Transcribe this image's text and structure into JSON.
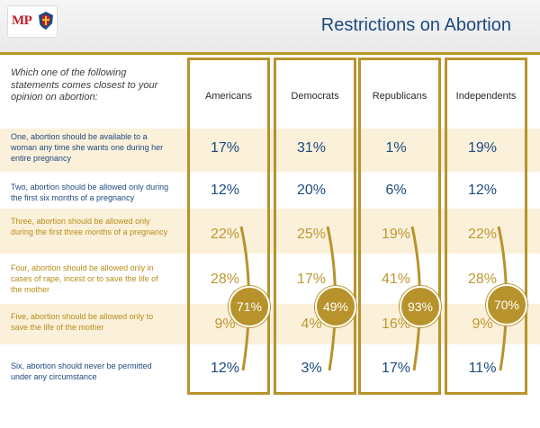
{
  "header": {
    "logo_text": "MP",
    "title": "Restrictions on Abortion"
  },
  "question": "Which one of the following statements comes closest to your opinion on abortion:",
  "colors": {
    "navy": "#1c4a80",
    "gold": "#b8932c",
    "band": "#fbf0da"
  },
  "chart_data": {
    "type": "table",
    "columns": [
      "Americans",
      "Democrats",
      "Republicans",
      "Independents"
    ],
    "rows": [
      {
        "label": "One, abortion should be available to a woman any time she wants one during her entire pregnancy",
        "values": [
          "17%",
          "31%",
          "1%",
          "19%"
        ]
      },
      {
        "label": "Two, abortion should be allowed only during the first six months of a pregnancy",
        "values": [
          "12%",
          "20%",
          "6%",
          "12%"
        ]
      },
      {
        "label": "Three, abortion should be allowed only during the first three months of a pregnancy",
        "values": [
          "22%",
          "25%",
          "19%",
          "22%"
        ]
      },
      {
        "label": "Four, abortion should be allowed only in cases of rape, incest or to save the life of the mother",
        "values": [
          "28%",
          "17%",
          "41%",
          "28%"
        ]
      },
      {
        "label": "Five, abortion should be allowed only to save the life of the mother",
        "values": [
          "9%",
          "4%",
          "16%",
          "9%"
        ]
      },
      {
        "label": "Six, abortion should never be permitted under any circumstance",
        "values": [
          "12%",
          "3%",
          "17%",
          "11%"
        ]
      }
    ],
    "totals": [
      "71%",
      "49%",
      "93%",
      "70%"
    ]
  }
}
